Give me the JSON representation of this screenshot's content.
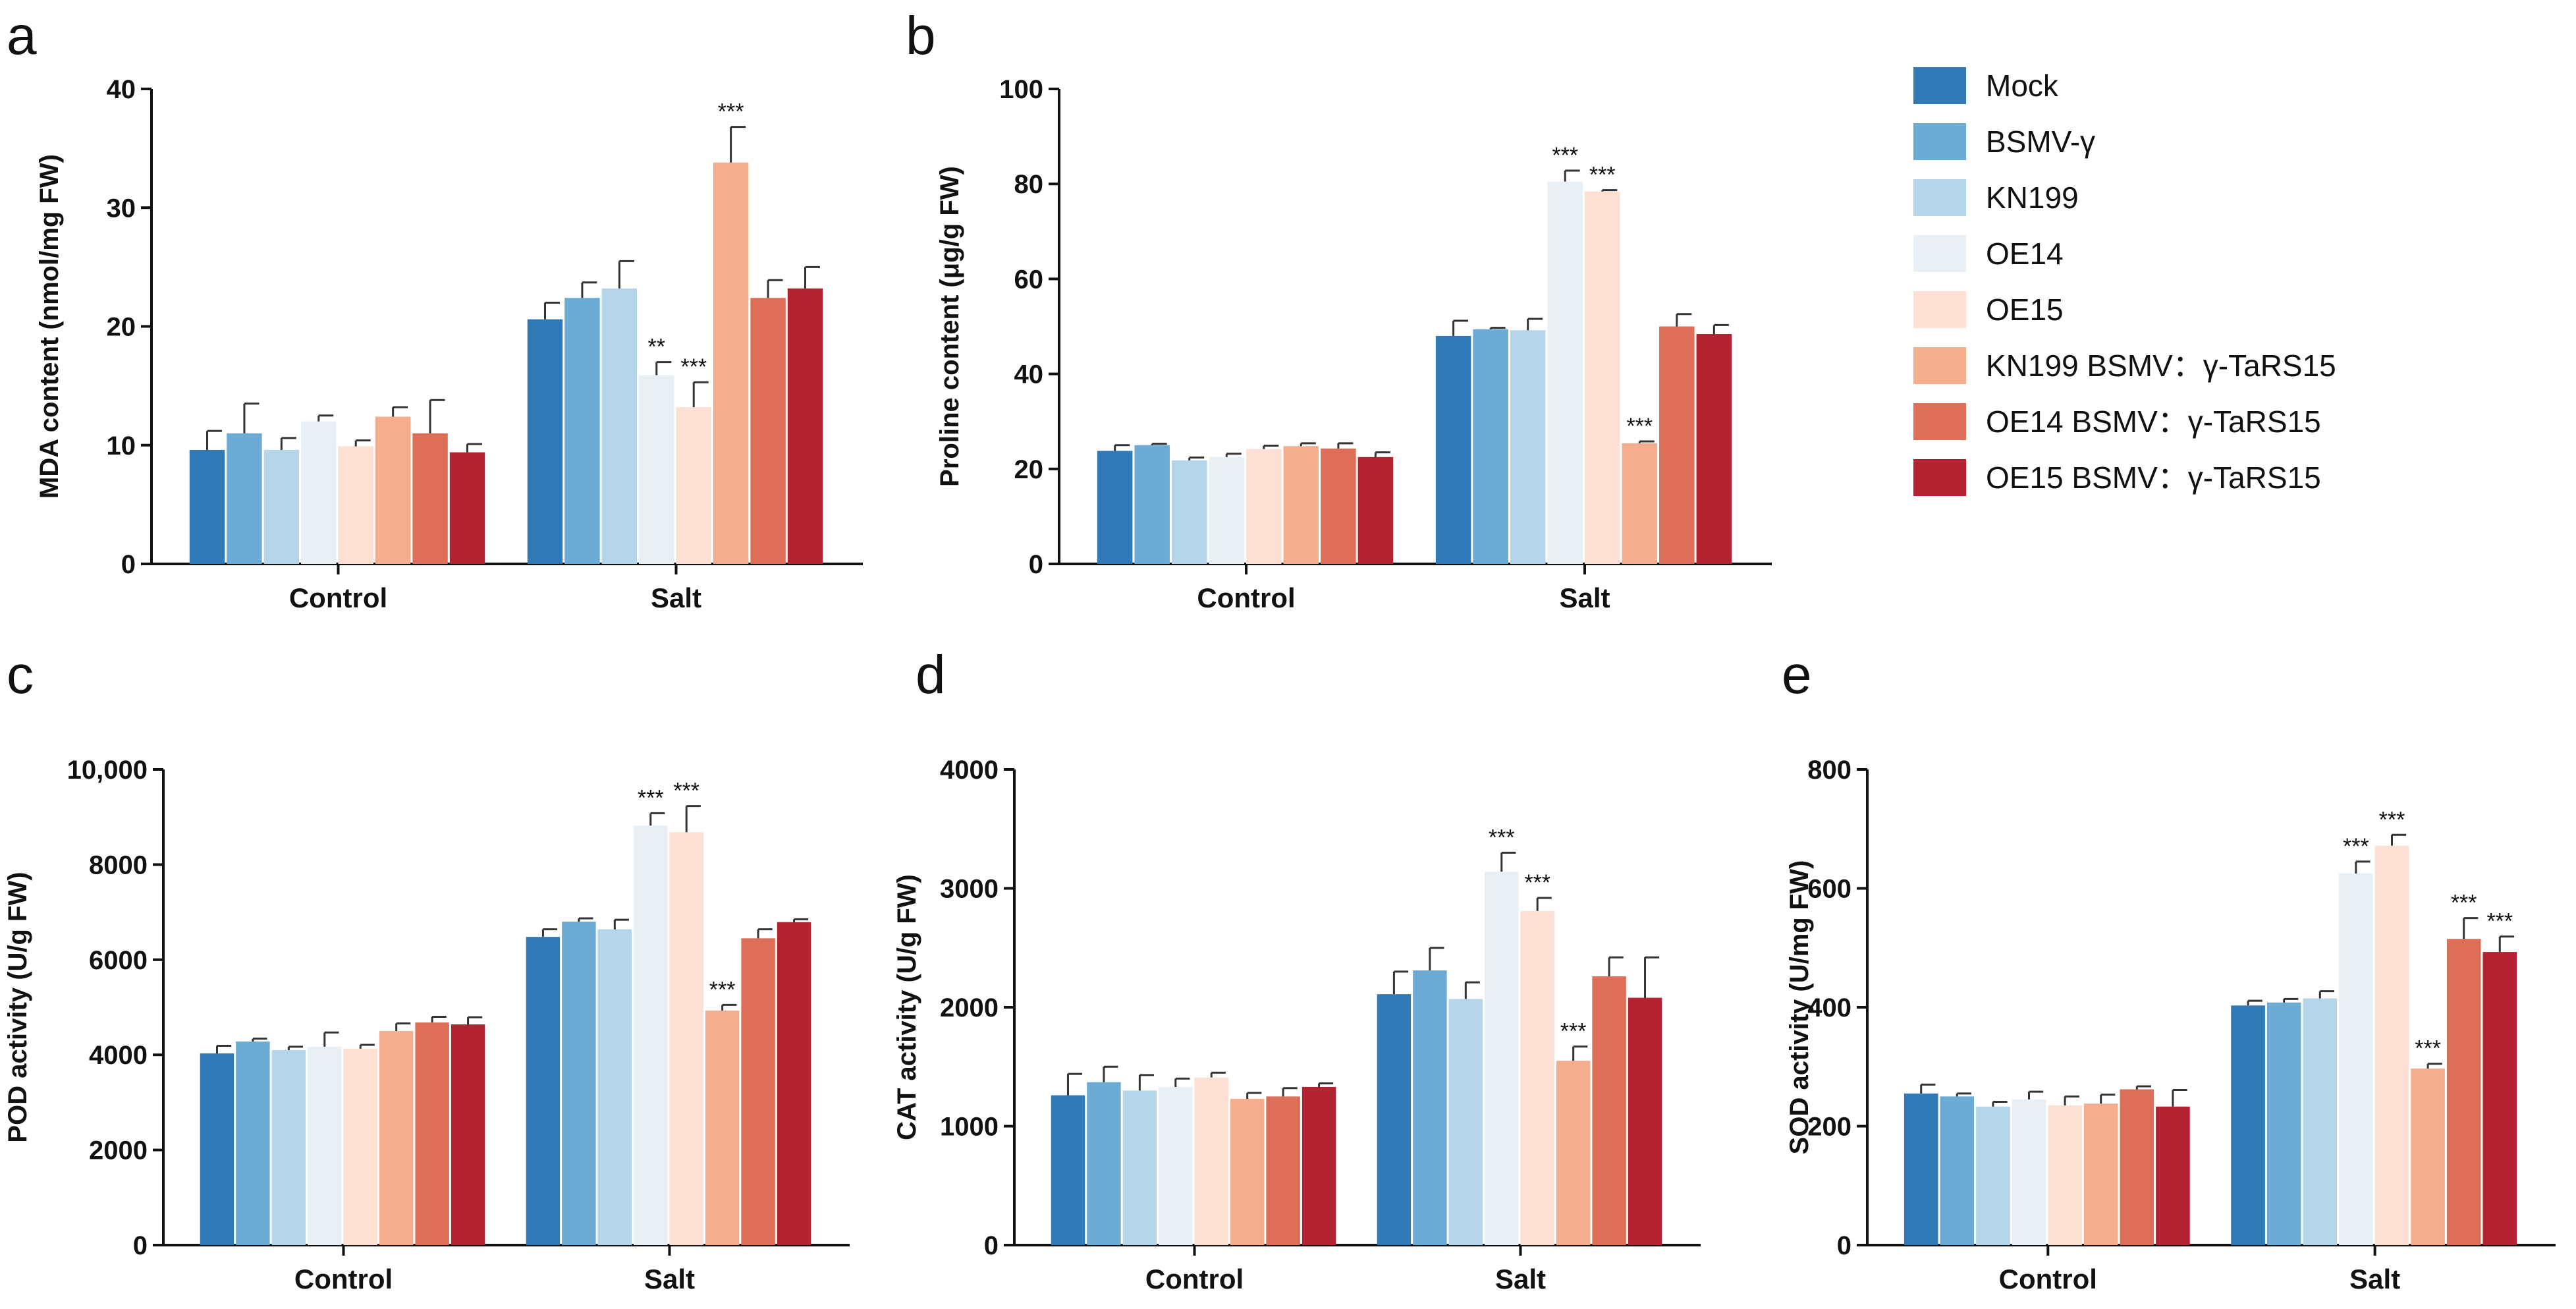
{
  "legend": {
    "entries": [
      {
        "name": "Mock",
        "color": "#2f7ab7"
      },
      {
        "name": "BSMV-γ",
        "color": "#6cabd3"
      },
      {
        "name": "KN199",
        "color": "#b4d5ea"
      },
      {
        "name": "OE14",
        "color": "#e8eff5"
      },
      {
        "name": "OE15",
        "color": "#fbe0d3"
      },
      {
        "name": "KN199 BSMV：γ-TaRS15",
        "color": "#f4ae8d"
      },
      {
        "name": "OE14 BSMV：γ-TaRS15",
        "color": "#dd6e57"
      },
      {
        "name": "OE15 BSMV：γ-TaRS15",
        "color": "#b42231"
      }
    ]
  },
  "chart_data": [
    {
      "panel": "a",
      "type": "bar",
      "ylabel": "MDA content (nmol/mg FW)",
      "ylim": [
        0,
        40
      ],
      "yticks": [
        "0",
        "10",
        "20",
        "30",
        "40"
      ],
      "categories": [
        "Control",
        "Salt"
      ],
      "series": [
        {
          "name": "Mock",
          "values": [
            9.6,
            20.6
          ],
          "errors": [
            1.6,
            1.4
          ],
          "sig": [
            "",
            ""
          ]
        },
        {
          "name": "BSMV-γ",
          "values": [
            11.0,
            22.4
          ],
          "errors": [
            2.5,
            1.3
          ],
          "sig": [
            "",
            ""
          ]
        },
        {
          "name": "KN199",
          "values": [
            9.6,
            23.2
          ],
          "errors": [
            1.0,
            2.3
          ],
          "sig": [
            "",
            ""
          ]
        },
        {
          "name": "OE14",
          "values": [
            12.0,
            15.9
          ],
          "errors": [
            0.5,
            1.1
          ],
          "sig": [
            "",
            "**"
          ]
        },
        {
          "name": "OE15",
          "values": [
            9.9,
            13.2
          ],
          "errors": [
            0.5,
            2.1
          ],
          "sig": [
            "",
            "***"
          ]
        },
        {
          "name": "KN199 BSMV：γ-TaRS15",
          "values": [
            12.4,
            33.8
          ],
          "errors": [
            0.8,
            3.0
          ],
          "sig": [
            "",
            "***"
          ]
        },
        {
          "name": "OE14 BSMV：γ-TaRS15",
          "values": [
            11.0,
            22.4
          ],
          "errors": [
            2.8,
            1.5
          ],
          "sig": [
            "",
            ""
          ]
        },
        {
          "name": "OE15 BSMV：γ-TaRS15",
          "values": [
            9.4,
            23.2
          ],
          "errors": [
            0.7,
            1.8
          ],
          "sig": [
            "",
            ""
          ]
        }
      ]
    },
    {
      "panel": "b",
      "type": "bar",
      "ylabel": "Proline content (μg/g FW)",
      "ylim": [
        0,
        100
      ],
      "yticks": [
        "0",
        "20",
        "40",
        "60",
        "80",
        "100"
      ],
      "categories": [
        "Control",
        "Salt"
      ],
      "series": [
        {
          "name": "Mock",
          "values": [
            23.8,
            48.0
          ],
          "errors": [
            1.2,
            3.2
          ],
          "sig": [
            "",
            ""
          ]
        },
        {
          "name": "BSMV-γ",
          "values": [
            25.0,
            49.4
          ],
          "errors": [
            0.3,
            0.3
          ],
          "sig": [
            "",
            ""
          ]
        },
        {
          "name": "KN199",
          "values": [
            21.8,
            49.2
          ],
          "errors": [
            0.6,
            2.4
          ],
          "sig": [
            "",
            ""
          ]
        },
        {
          "name": "OE14",
          "values": [
            22.5,
            80.5
          ],
          "errors": [
            0.7,
            2.3
          ],
          "sig": [
            "",
            "***"
          ]
        },
        {
          "name": "OE15",
          "values": [
            24.2,
            78.4
          ],
          "errors": [
            0.7,
            0.3
          ],
          "sig": [
            "",
            "***"
          ]
        },
        {
          "name": "KN199 BSMV：γ-TaRS15",
          "values": [
            24.8,
            25.4
          ],
          "errors": [
            0.6,
            0.4
          ],
          "sig": [
            "",
            "***"
          ]
        },
        {
          "name": "OE14 BSMV：γ-TaRS15",
          "values": [
            24.3,
            50.0
          ],
          "errors": [
            1.1,
            2.6
          ],
          "sig": [
            "",
            ""
          ]
        },
        {
          "name": "OE15 BSMV：γ-TaRS15",
          "values": [
            22.5,
            48.4
          ],
          "errors": [
            1.0,
            1.9
          ],
          "sig": [
            "",
            ""
          ]
        }
      ]
    },
    {
      "panel": "c",
      "type": "bar",
      "ylabel": "POD activity (U/g FW)",
      "ylim": [
        0,
        10000
      ],
      "yticks": [
        "0",
        "2000",
        "4000",
        "6000",
        "8000",
        "10,000"
      ],
      "categories": [
        "Control",
        "Salt"
      ],
      "series": [
        {
          "name": "Mock",
          "values": [
            4030,
            6480
          ],
          "errors": [
            160,
            160
          ],
          "sig": [
            "",
            ""
          ]
        },
        {
          "name": "BSMV-γ",
          "values": [
            4280,
            6800
          ],
          "errors": [
            60,
            70
          ],
          "sig": [
            "",
            ""
          ]
        },
        {
          "name": "KN199",
          "values": [
            4100,
            6640
          ],
          "errors": [
            70,
            200
          ],
          "sig": [
            "",
            ""
          ]
        },
        {
          "name": "OE14",
          "values": [
            4170,
            8820
          ],
          "errors": [
            300,
            260
          ],
          "sig": [
            "",
            "***"
          ]
        },
        {
          "name": "OE15",
          "values": [
            4130,
            8680
          ],
          "errors": [
            80,
            550
          ],
          "sig": [
            "",
            "***"
          ]
        },
        {
          "name": "KN199 BSMV：γ-TaRS15",
          "values": [
            4500,
            4930
          ],
          "errors": [
            160,
            120
          ],
          "sig": [
            "",
            "***"
          ]
        },
        {
          "name": "OE14 BSMV：γ-TaRS15",
          "values": [
            4680,
            6450
          ],
          "errors": [
            120,
            190
          ],
          "sig": [
            "",
            ""
          ]
        },
        {
          "name": "OE15 BSMV：γ-TaRS15",
          "values": [
            4640,
            6790
          ],
          "errors": [
            150,
            60
          ],
          "sig": [
            "",
            ""
          ]
        }
      ]
    },
    {
      "panel": "d",
      "type": "bar",
      "ylabel": "CAT activity (U/g FW)",
      "ylim": [
        0,
        4000
      ],
      "yticks": [
        "0",
        "1000",
        "2000",
        "3000",
        "4000"
      ],
      "categories": [
        "Control",
        "Salt"
      ],
      "series": [
        {
          "name": "Mock",
          "values": [
            1260,
            2110
          ],
          "errors": [
            180,
            190
          ],
          "sig": [
            "",
            ""
          ]
        },
        {
          "name": "BSMV-γ",
          "values": [
            1370,
            2310
          ],
          "errors": [
            130,
            190
          ],
          "sig": [
            "",
            ""
          ]
        },
        {
          "name": "KN199",
          "values": [
            1300,
            2070
          ],
          "errors": [
            130,
            140
          ],
          "sig": [
            "",
            ""
          ]
        },
        {
          "name": "OE14",
          "values": [
            1330,
            3140
          ],
          "errors": [
            70,
            160
          ],
          "sig": [
            "",
            "***"
          ]
        },
        {
          "name": "OE15",
          "values": [
            1410,
            2810
          ],
          "errors": [
            40,
            110
          ],
          "sig": [
            "",
            "***"
          ]
        },
        {
          "name": "KN199 BSMV：γ-TaRS15",
          "values": [
            1230,
            1550
          ],
          "errors": [
            50,
            120
          ],
          "sig": [
            "",
            "***"
          ]
        },
        {
          "name": "OE14 BSMV：γ-TaRS15",
          "values": [
            1250,
            2260
          ],
          "errors": [
            70,
            160
          ],
          "sig": [
            "",
            ""
          ]
        },
        {
          "name": "OE15 BSMV：γ-TaRS15",
          "values": [
            1330,
            2080
          ],
          "errors": [
            30,
            340
          ],
          "sig": [
            "",
            ""
          ]
        }
      ]
    },
    {
      "panel": "e",
      "type": "bar",
      "ylabel": "SOD activity (U/mg FW)",
      "ylim": [
        0,
        800
      ],
      "yticks": [
        "0",
        "200",
        "400",
        "600",
        "800"
      ],
      "categories": [
        "Control",
        "Salt"
      ],
      "series": [
        {
          "name": "Mock",
          "values": [
            255,
            403
          ],
          "errors": [
            15,
            8
          ],
          "sig": [
            "",
            ""
          ]
        },
        {
          "name": "BSMV-γ",
          "values": [
            250,
            408
          ],
          "errors": [
            5,
            6
          ],
          "sig": [
            "",
            ""
          ]
        },
        {
          "name": "KN199",
          "values": [
            233,
            415
          ],
          "errors": [
            8,
            12
          ],
          "sig": [
            "",
            ""
          ]
        },
        {
          "name": "OE14",
          "values": [
            245,
            625
          ],
          "errors": [
            13,
            20
          ],
          "sig": [
            "",
            "***"
          ]
        },
        {
          "name": "OE15",
          "values": [
            235,
            672
          ],
          "errors": [
            15,
            18
          ],
          "sig": [
            "",
            "***"
          ]
        },
        {
          "name": "KN199 BSMV：γ-TaRS15",
          "values": [
            238,
            297
          ],
          "errors": [
            15,
            8
          ],
          "sig": [
            "",
            "***"
          ]
        },
        {
          "name": "OE14 BSMV：γ-TaRS15",
          "values": [
            262,
            515
          ],
          "errors": [
            5,
            35
          ],
          "sig": [
            "",
            "***"
          ]
        },
        {
          "name": "OE15 BSMV：γ-TaRS15",
          "values": [
            233,
            493
          ],
          "errors": [
            28,
            26
          ],
          "sig": [
            "",
            "***"
          ]
        }
      ]
    }
  ]
}
